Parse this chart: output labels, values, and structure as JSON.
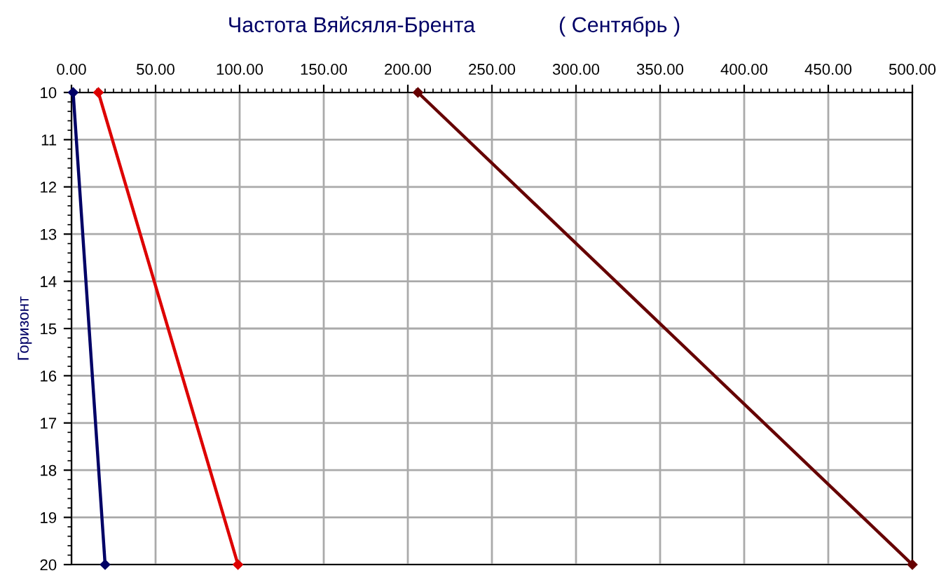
{
  "chart_data": {
    "type": "line",
    "title": "Частота Вяйсяля-Брента              ( Сентябрь )",
    "ylabel": "Горизонт",
    "series": [
      {
        "color": "#000066",
        "x": [
          1,
          20
        ],
        "values": [
          10,
          20
        ]
      },
      {
        "color": "#dd0000",
        "x": [
          16,
          99
        ],
        "values": [
          10,
          20
        ]
      },
      {
        "color": "#660000",
        "x": [
          206,
          500
        ],
        "values": [
          10,
          20
        ]
      }
    ],
    "xlim": [
      0,
      500
    ],
    "xticks": [
      {
        "value": 0,
        "label": "0.00"
      },
      {
        "value": 50,
        "label": "50.00"
      },
      {
        "value": 100,
        "label": "100.00"
      },
      {
        "value": 150,
        "label": "150.00"
      },
      {
        "value": 200,
        "label": "200.00"
      },
      {
        "value": 250,
        "label": "250.00"
      },
      {
        "value": 300,
        "label": "300.00"
      },
      {
        "value": 350,
        "label": "350.00"
      },
      {
        "value": 400,
        "label": "400.00"
      },
      {
        "value": 450,
        "label": "450.00"
      },
      {
        "value": 500,
        "label": "500.00"
      }
    ],
    "ylim": [
      20,
      10
    ],
    "yticks": [
      10,
      11,
      12,
      13,
      14,
      15,
      16,
      17,
      18,
      19,
      20
    ],
    "grid": true,
    "marker": "diamond",
    "line_style": "solid",
    "legend": false
  }
}
